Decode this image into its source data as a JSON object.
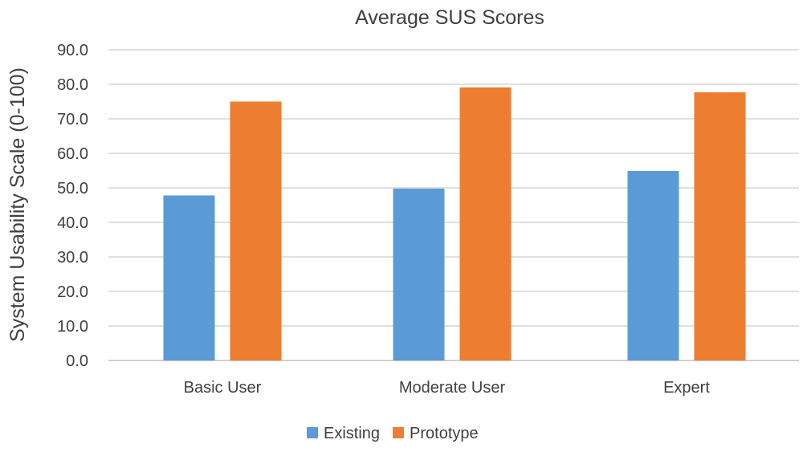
{
  "chart_data": {
    "type": "bar",
    "title": "Average SUS Scores",
    "xlabel": "",
    "ylabel": "System Usability Scale (0-100)",
    "ylim": [
      0,
      90
    ],
    "yticks": [
      "0.0",
      "10.0",
      "20.0",
      "30.0",
      "40.0",
      "50.0",
      "60.0",
      "70.0",
      "80.0",
      "90.0"
    ],
    "grid": true,
    "legend_position": "bottom",
    "categories": [
      "Basic User",
      "Moderate User",
      "Expert"
    ],
    "series": [
      {
        "name": "Existing",
        "color": "#5B9BD5",
        "values": [
          47.8,
          49.8,
          54.9
        ]
      },
      {
        "name": "Prototype",
        "color": "#ED7D31",
        "values": [
          75.0,
          79.1,
          77.7
        ]
      }
    ]
  }
}
